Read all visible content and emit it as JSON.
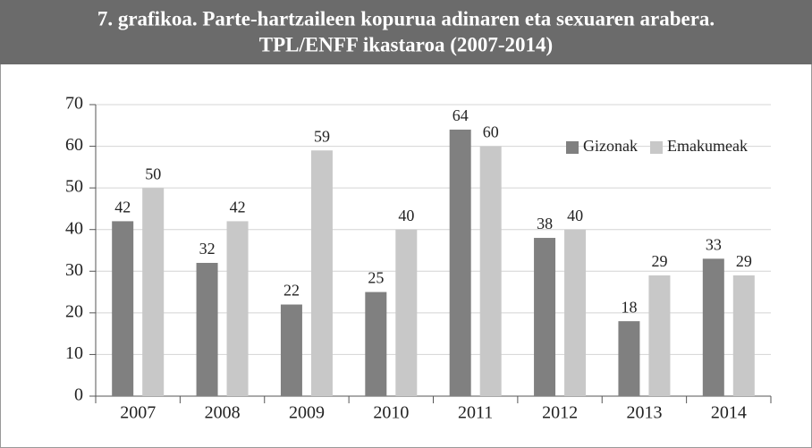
{
  "chart_data": {
    "type": "bar",
    "title": [
      "7. grafikoa. Parte-hartzaileen kopurua adinaren eta sexuaren arabera.",
      "TPL/ENFF ikastaroa (2007-2014)"
    ],
    "categories": [
      "2007",
      "2008",
      "2009",
      "2010",
      "2011",
      "2012",
      "2013",
      "2014"
    ],
    "series": [
      {
        "name": "Gizonak",
        "color": "#808080",
        "values": [
          42,
          32,
          22,
          25,
          64,
          38,
          18,
          33
        ]
      },
      {
        "name": "Emakumeak",
        "color": "#c8c8c8",
        "values": [
          50,
          42,
          59,
          40,
          60,
          40,
          29,
          29
        ]
      }
    ],
    "ylim": [
      0,
      70
    ],
    "yticks": [
      0,
      10,
      20,
      30,
      40,
      50,
      60,
      70
    ],
    "grid": true,
    "legend": "top-right"
  }
}
